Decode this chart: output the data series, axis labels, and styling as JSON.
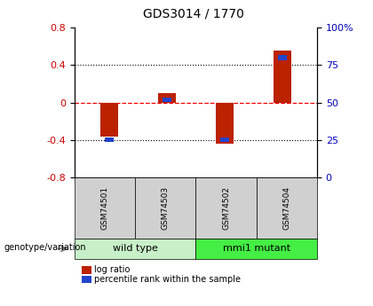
{
  "title": "GDS3014 / 1770",
  "samples": [
    "GSM74501",
    "GSM74503",
    "GSM74502",
    "GSM74504"
  ],
  "log_ratios": [
    -0.36,
    0.1,
    -0.44,
    0.55
  ],
  "percentile_ranks": [
    0.25,
    0.52,
    0.25,
    0.8
  ],
  "groups": [
    "wild type",
    "wild type",
    "mmi1 mutant",
    "mmi1 mutant"
  ],
  "wild_type_color": "#c8f0c8",
  "mmi1_mutant_color": "#44ee44",
  "sample_box_color": "#d0d0d0",
  "bar_color_red": "#bb2200",
  "bar_color_blue": "#2244cc",
  "ylim": [
    -0.8,
    0.8
  ],
  "yticks_left": [
    -0.8,
    -0.4,
    0.0,
    0.4,
    0.8
  ],
  "left_ytick_labels": [
    "-0.8",
    "-0.4",
    "0",
    "0.4",
    "0.8"
  ],
  "right_ytick_labels": [
    "0",
    "25",
    "50",
    "75",
    "100%"
  ],
  "left_ylabel_color": "#cc0000",
  "right_ylabel_color": "#0000bb",
  "legend_log_ratio": "log ratio",
  "legend_percentile": "percentile rank within the sample",
  "genotype_label": "genotype/variation",
  "group_names": [
    "wild type",
    "mmi1 mutant"
  ],
  "bar_width": 0.3
}
